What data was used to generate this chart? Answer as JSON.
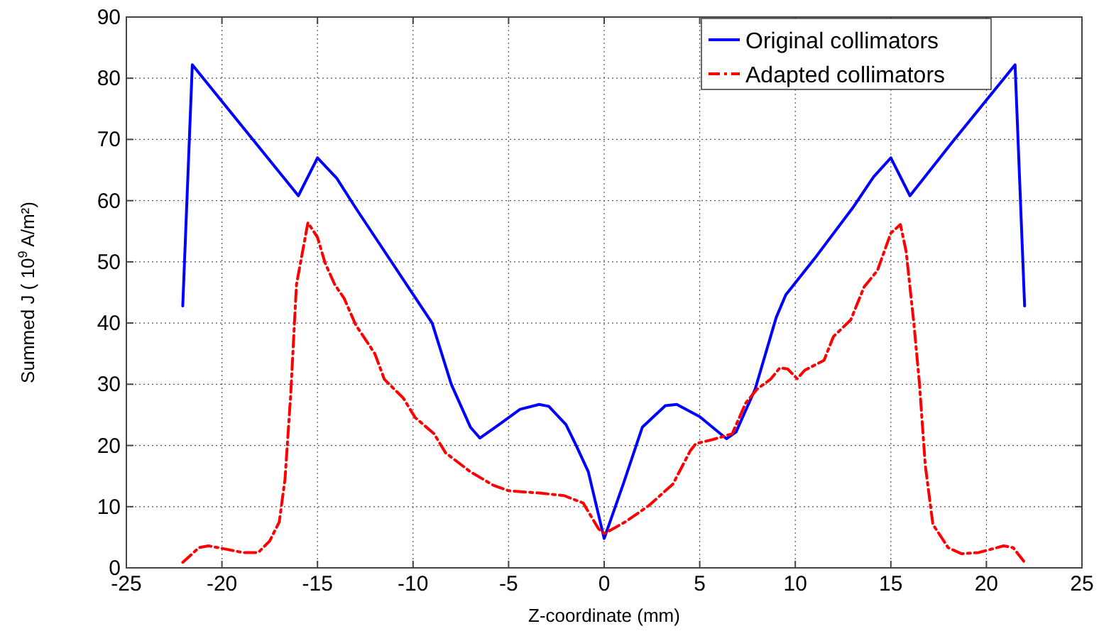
{
  "chart_data": {
    "type": "line",
    "xlabel": "Z-coordinate (mm)",
    "ylabel": "Summed J ( 10$^{9}$ A/m²)",
    "xlim": [
      -25,
      25
    ],
    "ylim": [
      0,
      90
    ],
    "xticks": [
      -25,
      -20,
      -15,
      -10,
      -5,
      0,
      5,
      10,
      15,
      20,
      25
    ],
    "yticks": [
      0,
      10,
      20,
      30,
      40,
      50,
      60,
      70,
      80,
      90
    ],
    "grid": true,
    "legend": "top right",
    "series": [
      {
        "name": "Original collimators",
        "color": "#0000ff",
        "line_style": "solid",
        "x": [
          -22.05,
          -21.55,
          -16.0,
          -15.0,
          -14.0,
          -13.0,
          -10.0,
          -9.0,
          -8.0,
          -7.0,
          -6.5,
          -5.5,
          -4.4,
          -3.4,
          -2.9,
          -2.0,
          -1.45,
          -0.83,
          0.0,
          1.0,
          2.0,
          3.2,
          3.8,
          5.0,
          6.4,
          6.9,
          7.9,
          9.0,
          9.5,
          11.0,
          13.0,
          14.1,
          15.0,
          16.0,
          18.2,
          21.5,
          22.0
        ],
        "values": [
          42.8,
          82.2,
          60.8,
          67,
          63.7,
          58.8,
          44.7,
          40,
          30,
          23,
          21.2,
          23.4,
          25.9,
          26.7,
          26.4,
          23.4,
          19.9,
          15.7,
          4.8,
          13.7,
          23,
          26.5,
          26.7,
          24.7,
          21.1,
          22.2,
          29.2,
          40.9,
          44.6,
          50.5,
          58.8,
          63.9,
          67,
          60.8,
          69.5,
          82.2,
          42.8
        ]
      },
      {
        "name": "Adapted collimators",
        "color": "#ff0000",
        "line_style": "dashed",
        "x": [
          -22.05,
          -21.2,
          -20.7,
          -19.7,
          -18.9,
          -18.1,
          -17.5,
          -17.0,
          -16.7,
          -16.4,
          -16.1,
          -15.5,
          -15.0,
          -14.6,
          -14.1,
          -13.6,
          -13.0,
          -12.0,
          -11.5,
          -10.5,
          -9.9,
          -8.9,
          -8.3,
          -7.0,
          -5.8,
          -5.0,
          -3.3,
          -2.1,
          -1.1,
          -0.3,
          0.0,
          1.1,
          2.35,
          3.6,
          4.5,
          4.8,
          5.6,
          6.7,
          7.4,
          8.0,
          8.7,
          9.2,
          9.6,
          10.1,
          10.5,
          11.5,
          12.0,
          12.9,
          13.6,
          14.3,
          15.0,
          15.5,
          15.8,
          16.2,
          16.5,
          16.8,
          17.2,
          18.0,
          18.7,
          19.6,
          20.9,
          21.4,
          22.0
        ],
        "values": [
          0.9,
          3.3,
          3.6,
          3.0,
          2.5,
          2.5,
          4.4,
          7.5,
          14.5,
          28.4,
          46.3,
          56.4,
          54,
          49.8,
          46.3,
          44,
          39.7,
          35,
          30.8,
          27.7,
          24.6,
          21.9,
          18.8,
          15.7,
          13.5,
          12.6,
          12.2,
          11.8,
          10.6,
          6.4,
          5.6,
          7.5,
          10.2,
          13.7,
          19.1,
          20.3,
          20.9,
          21.9,
          26.9,
          29.2,
          30.8,
          32.7,
          32.5,
          30.9,
          32.3,
          33.9,
          37.8,
          40.5,
          45.9,
          48.6,
          54.7,
          56.1,
          51.7,
          40.1,
          30.0,
          16.8,
          7.1,
          3.3,
          2.3,
          2.5,
          3.6,
          3.3,
          0.9
        ]
      }
    ]
  }
}
